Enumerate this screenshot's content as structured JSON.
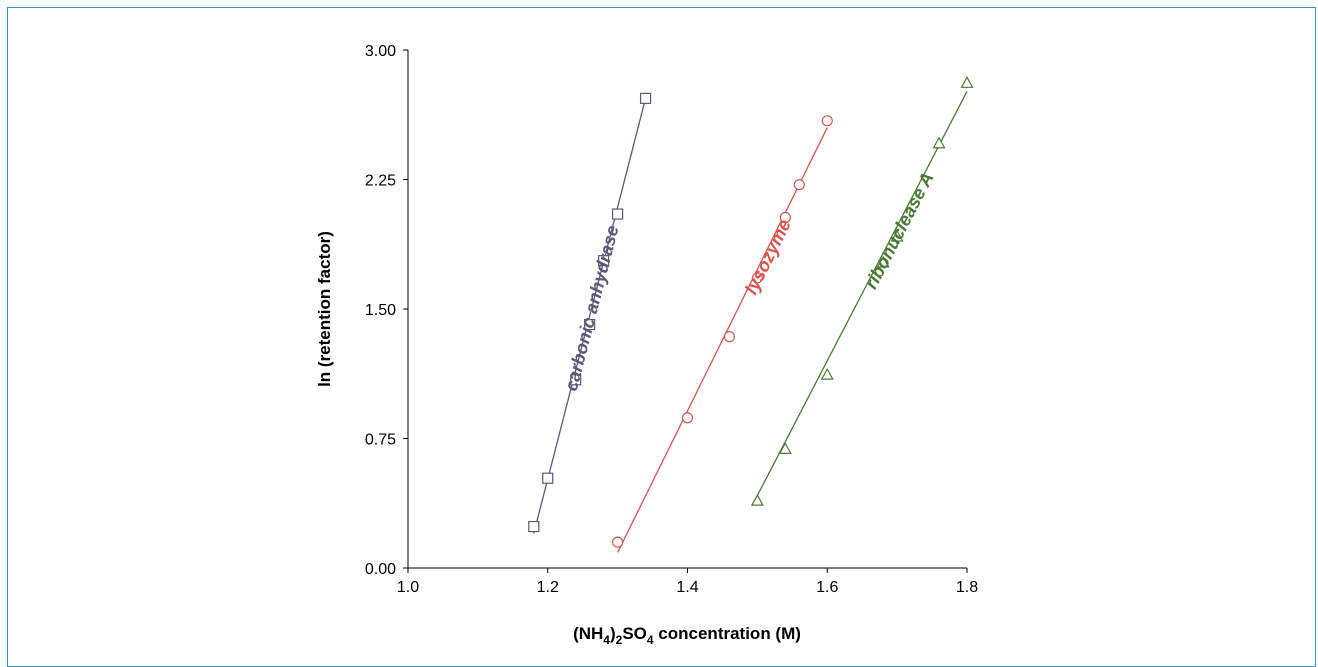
{
  "chart_data": {
    "type": "scatter",
    "title": "",
    "xlabel_parts": {
      "open": "(NH",
      "sub1": "4",
      "mid": ")",
      "sub2": "2",
      "so": "SO",
      "sub3": "4",
      "rest": " concentration  (M)"
    },
    "ylabel": "ln (retention factor)",
    "xlim": [
      1.0,
      1.8
    ],
    "ylim": [
      0.0,
      3.0
    ],
    "x_ticks": [
      1.0,
      1.2,
      1.4,
      1.6,
      1.8
    ],
    "x_tick_labels": [
      "1.0",
      "1.2",
      "1.4",
      "1.6",
      "1.8"
    ],
    "y_ticks": [
      0.0,
      0.75,
      1.5,
      2.25,
      3.0
    ],
    "y_tick_labels": [
      "0.00",
      "0.75",
      "1.50",
      "2.25",
      "3.00"
    ],
    "grid": false,
    "legend": "none",
    "series": [
      {
        "name": "carbonic anhydrase",
        "color": "#5a5a78",
        "marker": "square",
        "points": [
          [
            1.18,
            0.24
          ],
          [
            1.2,
            0.52
          ],
          [
            1.24,
            1.09
          ],
          [
            1.26,
            1.41
          ],
          [
            1.28,
            1.78
          ],
          [
            1.3,
            2.05
          ],
          [
            1.34,
            2.72
          ]
        ],
        "fit": [
          [
            1.18,
            0.2
          ],
          [
            1.34,
            2.72
          ]
        ]
      },
      {
        "name": "lysozyme",
        "color": "#d9534f",
        "marker": "circle",
        "points": [
          [
            1.3,
            0.15
          ],
          [
            1.4,
            0.87
          ],
          [
            1.46,
            1.34
          ],
          [
            1.5,
            1.68
          ],
          [
            1.54,
            2.03
          ],
          [
            1.56,
            2.22
          ],
          [
            1.6,
            2.59
          ]
        ],
        "fit": [
          [
            1.3,
            0.09
          ],
          [
            1.6,
            2.55
          ]
        ]
      },
      {
        "name": "ribonuclease A",
        "color": "#4a7a33",
        "marker": "triangle",
        "points": [
          [
            1.5,
            0.39
          ],
          [
            1.54,
            0.69
          ],
          [
            1.6,
            1.12
          ],
          [
            1.68,
            1.77
          ],
          [
            1.7,
            1.92
          ],
          [
            1.76,
            2.46
          ],
          [
            1.8,
            2.81
          ]
        ],
        "fit": [
          [
            1.5,
            0.42
          ],
          [
            1.8,
            2.76
          ]
        ]
      }
    ]
  }
}
